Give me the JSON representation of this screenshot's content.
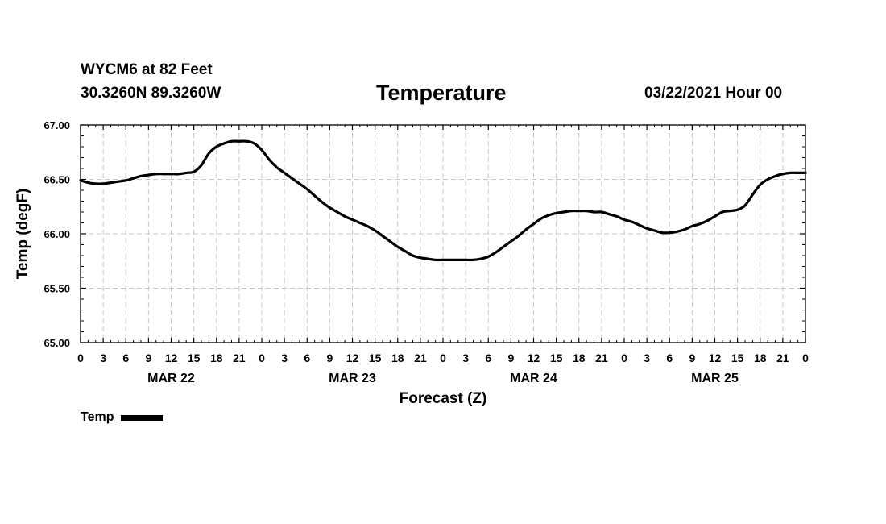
{
  "header": {
    "station": "WYCM6 at 82 Feet",
    "coords": "30.3260N 89.3260W",
    "title": "Temperature",
    "date": "03/22/2021 Hour 00"
  },
  "chart_data": {
    "type": "line",
    "title": "Temperature",
    "xlabel": "Forecast (Z)",
    "ylabel": "Temp (degF)",
    "ylim": [
      65.0,
      67.0
    ],
    "yticks": [
      "65.00",
      "65.50",
      "66.00",
      "66.50",
      "67.00"
    ],
    "xlim_hours": [
      0,
      96
    ],
    "xticks_hours": [
      0,
      3,
      6,
      9,
      12,
      15,
      18,
      21,
      24,
      27,
      30,
      33,
      36,
      39,
      42,
      45,
      48,
      51,
      54,
      57,
      60,
      63,
      66,
      69,
      72,
      75,
      78,
      81,
      84,
      87,
      90,
      93,
      96
    ],
    "xtick_labels": [
      "0",
      "3",
      "6",
      "9",
      "12",
      "15",
      "18",
      "21",
      "0",
      "3",
      "6",
      "9",
      "12",
      "15",
      "18",
      "21",
      "0",
      "3",
      "6",
      "9",
      "12",
      "15",
      "18",
      "21",
      "0",
      "3",
      "6",
      "9",
      "12",
      "15",
      "18",
      "21",
      "0"
    ],
    "day_labels": [
      {
        "label": "MAR 22",
        "hour": 12
      },
      {
        "label": "MAR 23",
        "hour": 36
      },
      {
        "label": "MAR 24",
        "hour": 60
      },
      {
        "label": "MAR 25",
        "hour": 84
      }
    ],
    "grid": true,
    "legend_position": "bottom-left",
    "series": [
      {
        "name": "Temp",
        "color": "#000000",
        "x": [
          0,
          1,
          2,
          3,
          4,
          5,
          6,
          7,
          8,
          9,
          10,
          11,
          12,
          13,
          14,
          15,
          16,
          17,
          18,
          19,
          20,
          21,
          22,
          23,
          24,
          25,
          26,
          27,
          28,
          29,
          30,
          31,
          32,
          33,
          34,
          35,
          36,
          37,
          38,
          39,
          40,
          41,
          42,
          43,
          44,
          45,
          46,
          47,
          48,
          49,
          50,
          51,
          52,
          53,
          54,
          55,
          56,
          57,
          58,
          59,
          60,
          61,
          62,
          63,
          64,
          65,
          66,
          67,
          68,
          69,
          70,
          71,
          72,
          73,
          74,
          75,
          76,
          77,
          78,
          79,
          80,
          81,
          82,
          83,
          84,
          85,
          86,
          87,
          88,
          89,
          90,
          91,
          92,
          93,
          94,
          95,
          96
        ],
        "values": [
          66.49,
          66.47,
          66.46,
          66.46,
          66.47,
          66.48,
          66.49,
          66.51,
          66.53,
          66.54,
          66.55,
          66.55,
          66.55,
          66.55,
          66.56,
          66.57,
          66.63,
          66.74,
          66.8,
          66.83,
          66.85,
          66.85,
          66.85,
          66.83,
          66.77,
          66.68,
          66.61,
          66.56,
          66.51,
          66.46,
          66.41,
          66.35,
          66.29,
          66.24,
          66.2,
          66.16,
          66.13,
          66.1,
          66.07,
          66.03,
          65.98,
          65.93,
          65.88,
          65.84,
          65.8,
          65.78,
          65.77,
          65.76,
          65.76,
          65.76,
          65.76,
          65.76,
          65.76,
          65.77,
          65.79,
          65.83,
          65.88,
          65.93,
          65.98,
          66.04,
          66.09,
          66.14,
          66.17,
          66.19,
          66.2,
          66.21,
          66.21,
          66.21,
          66.2,
          66.2,
          66.18,
          66.16,
          66.13,
          66.11,
          66.08,
          66.05,
          66.03,
          66.01,
          66.01,
          66.02,
          66.04,
          66.07,
          66.09,
          66.12,
          66.16,
          66.2,
          66.21,
          66.22,
          66.26,
          66.36,
          66.45,
          66.5,
          66.53,
          66.55,
          66.56,
          66.56,
          66.56
        ]
      }
    ]
  }
}
